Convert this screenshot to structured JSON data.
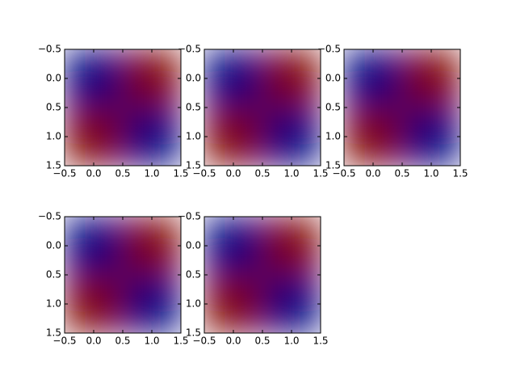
{
  "chart_data": [
    {
      "type": "heatmap",
      "z": [
        [
          0,
          1
        ],
        [
          1,
          0
        ]
      ],
      "colorscale": [
        "#000080",
        "#800000"
      ],
      "xlim": [
        -0.5,
        1.5
      ],
      "ylim": [
        1.5,
        -0.5
      ],
      "xticks": [
        {
          "value": -0.5,
          "label": "−0.5"
        },
        {
          "value": 0,
          "label": "0.0"
        },
        0.5,
        {
          "value": 1,
          "label": "1.0"
        },
        1.5
      ],
      "yticks": [
        {
          "value": -0.5,
          "label": "−0.5"
        },
        {
          "value": 0,
          "label": "0.0"
        },
        0.5,
        {
          "value": 1,
          "label": "1.0"
        },
        1.5
      ]
    },
    {
      "type": "heatmap",
      "z": [
        [
          0,
          1
        ],
        [
          1,
          0
        ]
      ],
      "colorscale": [
        "#000080",
        "#800000"
      ],
      "xlim": [
        -0.5,
        1.5
      ],
      "ylim": [
        1.5,
        -0.5
      ],
      "xticks": [
        {
          "value": -0.5,
          "label": "−0.5"
        },
        {
          "value": 0,
          "label": "0.0"
        },
        0.5,
        {
          "value": 1,
          "label": "1.0"
        },
        1.5
      ],
      "yticks": [
        {
          "value": -0.5,
          "label": "−0.5"
        },
        {
          "value": 0,
          "label": "0.0"
        },
        0.5,
        {
          "value": 1,
          "label": "1.0"
        },
        1.5
      ]
    },
    {
      "type": "heatmap",
      "z": [
        [
          0,
          1
        ],
        [
          1,
          0
        ]
      ],
      "colorscale": [
        "#000080",
        "#800000"
      ],
      "xlim": [
        -0.5,
        1.5
      ],
      "ylim": [
        1.5,
        -0.5
      ],
      "xticks": [
        {
          "value": -0.5,
          "label": "−0.5"
        },
        {
          "value": 0,
          "label": "0.0"
        },
        0.5,
        {
          "value": 1,
          "label": "1.0"
        },
        1.5
      ],
      "yticks": [
        {
          "value": -0.5,
          "label": "−0.5"
        },
        {
          "value": 0,
          "label": "0.0"
        },
        0.5,
        {
          "value": 1,
          "label": "1.0"
        },
        1.5
      ]
    },
    {
      "type": "heatmap",
      "z": [
        [
          0,
          1
        ],
        [
          1,
          0
        ]
      ],
      "colorscale": [
        "#000080",
        "#800000"
      ],
      "xlim": [
        -0.5,
        1.5
      ],
      "ylim": [
        1.5,
        -0.5
      ],
      "xticks": [
        {
          "value": -0.5,
          "label": "−0.5"
        },
        {
          "value": 0,
          "label": "0.0"
        },
        0.5,
        {
          "value": 1,
          "label": "1.0"
        },
        1.5
      ],
      "yticks": [
        {
          "value": -0.5,
          "label": "−0.5"
        },
        {
          "value": 0,
          "label": "0.0"
        },
        0.5,
        {
          "value": 1,
          "label": "1.0"
        },
        1.5
      ]
    },
    {
      "type": "heatmap",
      "z": [
        [
          0,
          1
        ],
        [
          1,
          0
        ]
      ],
      "colorscale": [
        "#000080",
        "#800000"
      ],
      "xlim": [
        -0.5,
        1.5
      ],
      "ylim": [
        1.5,
        -0.5
      ],
      "xticks": [
        {
          "value": -0.5,
          "label": "−0.5"
        },
        {
          "value": 0,
          "label": "0.0"
        },
        0.5,
        {
          "value": 1,
          "label": "1.0"
        },
        1.5
      ],
      "yticks": [
        {
          "value": -0.5,
          "label": "−0.5"
        },
        {
          "value": 0,
          "label": "0.0"
        },
        0.5,
        {
          "value": 1,
          "label": "1.0"
        },
        1.5
      ]
    }
  ]
}
